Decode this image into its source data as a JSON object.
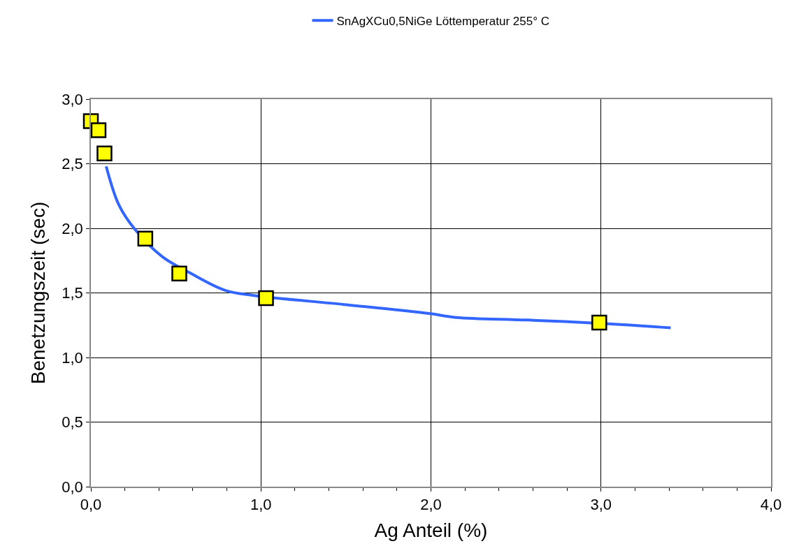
{
  "chart_data": {
    "type": "line",
    "xlabel": "Ag Anteil (%)",
    "ylabel": "Benetzungszeit (sec)",
    "xlim": [
      0,
      4
    ],
    "ylim": [
      0,
      3
    ],
    "xticks": [
      {
        "value": 0,
        "label": "0,0"
      },
      {
        "value": 0.2,
        "label": null
      },
      {
        "value": 0.4,
        "label": null
      },
      {
        "value": 0.6,
        "label": null
      },
      {
        "value": 0.8,
        "label": null
      },
      {
        "value": 1,
        "label": "1,0"
      },
      {
        "value": 1.2,
        "label": null
      },
      {
        "value": 1.4,
        "label": null
      },
      {
        "value": 1.6,
        "label": null
      },
      {
        "value": 1.8,
        "label": null
      },
      {
        "value": 2,
        "label": "2,0"
      },
      {
        "value": 2.2,
        "label": null
      },
      {
        "value": 2.4,
        "label": null
      },
      {
        "value": 2.6,
        "label": null
      },
      {
        "value": 2.8,
        "label": null
      },
      {
        "value": 3,
        "label": "3,0"
      },
      {
        "value": 3.2,
        "label": null
      },
      {
        "value": 3.4,
        "label": null
      },
      {
        "value": 3.6,
        "label": null
      },
      {
        "value": 3.8,
        "label": null
      },
      {
        "value": 4,
        "label": "4,0"
      }
    ],
    "yticks": [
      {
        "value": 0,
        "label": "0,0"
      },
      {
        "value": 0.5,
        "label": "0,5"
      },
      {
        "value": 1,
        "label": "1,0"
      },
      {
        "value": 1.5,
        "label": "1,5"
      },
      {
        "value": 2,
        "label": "2,0"
      },
      {
        "value": 2.5,
        "label": "2,5"
      },
      {
        "value": 3,
        "label": "3,0"
      }
    ],
    "grid": true,
    "legend": "top",
    "series": [
      {
        "name": "SnAgXCu0,5NiGe Löttemperatur 255° C",
        "color": "#3366ff",
        "marker": "none",
        "line_style": "solid",
        "x": [
          0.09,
          0.165,
          0.26,
          0.42,
          0.59,
          0.79,
          0.96,
          1.49,
          1.99,
          2.15,
          2.57,
          3.06,
          3.41
        ],
        "values": [
          2.48,
          2.18,
          1.99,
          1.78,
          1.65,
          1.52,
          1.48,
          1.41,
          1.34,
          1.31,
          1.29,
          1.26,
          1.23
        ]
      },
      {
        "type": "scatter",
        "color": "#ffff00",
        "marker": "square",
        "x": [
          0,
          0.045,
          0.08,
          0.32,
          0.52,
          1.03,
          2.99
        ],
        "values": [
          2.83,
          2.76,
          2.58,
          1.92,
          1.65,
          1.46,
          1.27
        ]
      }
    ]
  }
}
